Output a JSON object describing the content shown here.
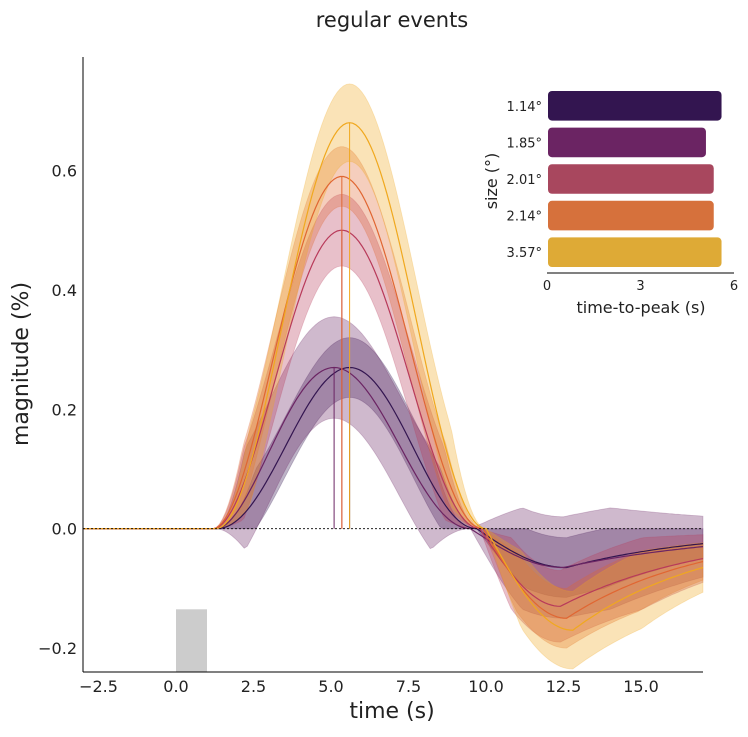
{
  "chart_data": [
    {
      "type": "line",
      "title": "regular events",
      "xlabel": "time (s)",
      "ylabel": "magnitude (%)",
      "xlim": [
        -3,
        17
      ],
      "ylim": [
        -0.24,
        0.79
      ],
      "xticks": [
        -2.5,
        0.0,
        2.5,
        5.0,
        7.5,
        10.0,
        12.5,
        15.0
      ],
      "xtick_labels": [
        "−2.5",
        "0.0",
        "2.5",
        "5.0",
        "7.5",
        "10.0",
        "12.5",
        "15.0"
      ],
      "yticks": [
        -0.2,
        0.0,
        0.2,
        0.4,
        0.6
      ],
      "ytick_labels": [
        "−0.2",
        "0.0",
        "0.2",
        "0.4",
        "0.6"
      ],
      "grid": false,
      "zero_line": true,
      "stimulus_block": {
        "x": [
          0,
          1
        ],
        "y": [
          -0.24,
          -0.135
        ],
        "color": "#cccccc"
      },
      "series": [
        {
          "color": "#331550",
          "peak_x": 5.6,
          "peak_y": 0.27,
          "onset_x": 1.3,
          "zero_cross_x": 9.7,
          "trough_x": 12.6,
          "trough_y": -0.065,
          "end_y": -0.025,
          "band": 0.05
        },
        {
          "color": "#6b2463",
          "peak_x": 5.1,
          "peak_y": 0.27,
          "onset_x": 1.3,
          "zero_cross_x": 9.5,
          "trough_x": 12.5,
          "trough_y": -0.065,
          "end_y": -0.03,
          "band": 0.085
        },
        {
          "color": "#b83a5a",
          "peak_x": 5.35,
          "peak_y": 0.5,
          "onset_x": 1.2,
          "zero_cross_x": 9.8,
          "trough_x": 12.4,
          "trough_y": -0.13,
          "end_y": -0.05,
          "band": 0.06
        },
        {
          "color": "#e06632",
          "peak_x": 5.35,
          "peak_y": 0.59,
          "onset_x": 1.2,
          "zero_cross_x": 9.9,
          "trough_x": 12.6,
          "trough_y": -0.15,
          "end_y": -0.055,
          "band": 0.05
        },
        {
          "color": "#f0a81e",
          "peak_x": 5.6,
          "peak_y": 0.68,
          "onset_x": 1.3,
          "zero_cross_x": 10.0,
          "trough_x": 12.8,
          "trough_y": -0.17,
          "end_y": -0.065,
          "band": 0.065
        }
      ]
    },
    {
      "type": "bar",
      "orientation": "horizontal",
      "xlabel": "time-to-peak (s)",
      "ylabel": "size (°)",
      "xlim": [
        0,
        6
      ],
      "xticks": [
        0,
        3,
        6
      ],
      "xtick_labels": [
        "0",
        "3",
        "6"
      ],
      "categories": [
        "1.14°",
        "1.85°",
        "2.01°",
        "2.14°",
        "3.57°"
      ],
      "values": [
        5.6,
        5.1,
        5.35,
        5.35,
        5.6
      ],
      "colors": [
        "#331550",
        "#6b2463",
        "#a8475e",
        "#d6713c",
        "#deaa36"
      ]
    }
  ]
}
